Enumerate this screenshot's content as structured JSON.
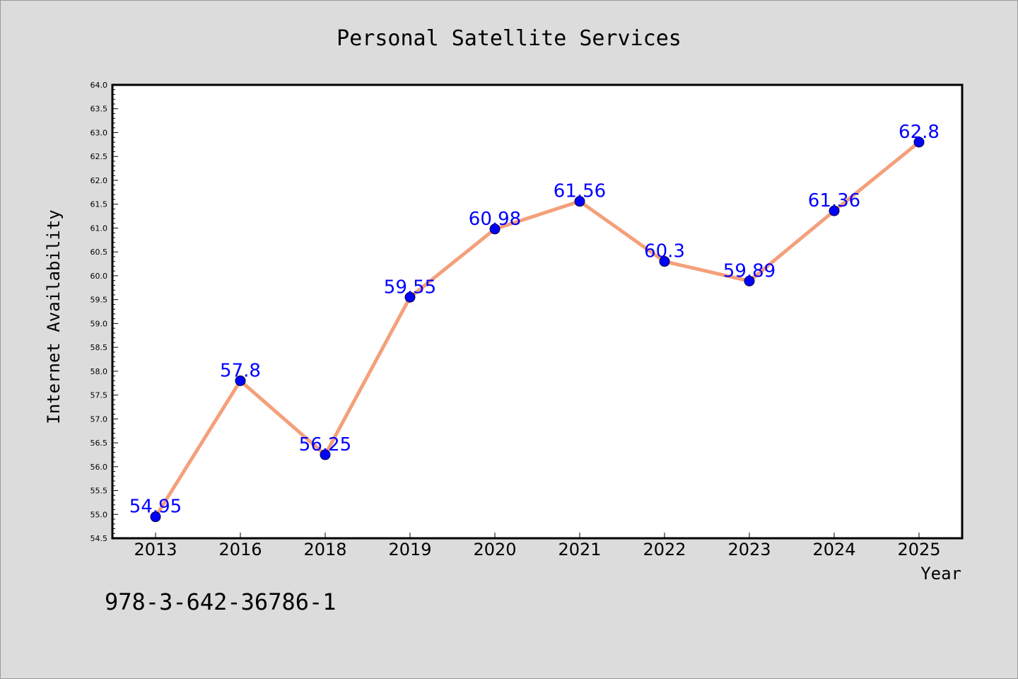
{
  "footnote": "978-3-642-36786-1",
  "chart_data": {
    "type": "line",
    "title": "Personal Satellite Services",
    "xlabel": "Year",
    "ylabel": "Internet Availability",
    "categories": [
      "2013",
      "2016",
      "2018",
      "2019",
      "2020",
      "2021",
      "2022",
      "2023",
      "2024",
      "2025"
    ],
    "values": [
      54.95,
      57.8,
      56.25,
      59.55,
      60.98,
      61.56,
      60.3,
      59.89,
      61.36,
      62.8
    ],
    "data_labels": [
      "54.95",
      "57.8",
      "56.25",
      "59.55",
      "60.98",
      "61.56",
      "60.3",
      "59.89",
      "61.36",
      "62.8"
    ],
    "ylim": [
      54.5,
      64.0
    ],
    "y_ticks": [
      "54.5",
      "55.0",
      "55.5",
      "56.0",
      "56.5",
      "57.0",
      "57.5",
      "58.0",
      "58.5",
      "59.0",
      "59.5",
      "60.0",
      "60.5",
      "61.0",
      "61.5",
      "62.0",
      "62.5",
      "63.0",
      "63.5",
      "64.0"
    ],
    "grid": false,
    "legend": "none",
    "colors": {
      "line": "#f4a07a",
      "marker": "#0000ff",
      "data_label": "#0000ff",
      "plot_background": "#ffffff",
      "page_background": "#dcdcdc"
    }
  }
}
